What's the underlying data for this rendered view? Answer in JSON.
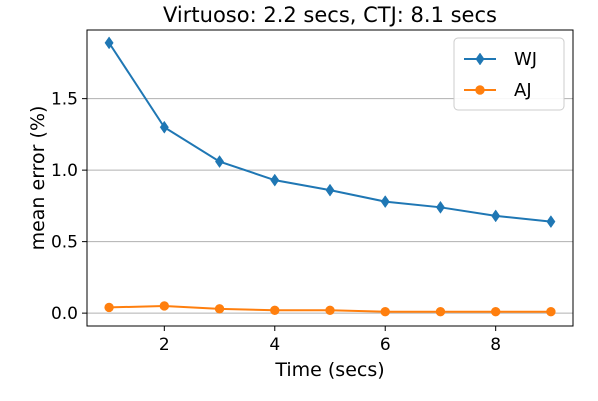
{
  "chart_data": {
    "type": "line",
    "title": "Virtuoso: 2.2 secs, CTJ: 8.1 secs",
    "xlabel": "Time (secs)",
    "ylabel": "mean error (%)",
    "xlim": [
      0.6,
      9.4
    ],
    "ylim": [
      -0.09,
      1.98
    ],
    "xticks": [
      2,
      4,
      6,
      8
    ],
    "xtick_labels": [
      "2",
      "4",
      "6",
      "8"
    ],
    "yticks": [
      0.0,
      0.5,
      1.0,
      1.5
    ],
    "ytick_labels": [
      "0.0",
      "0.5",
      "1.0",
      "1.5"
    ],
    "grid": "y",
    "legend_position": "upper right",
    "x": [
      1,
      2,
      3,
      4,
      5,
      6,
      7,
      8,
      9
    ],
    "series": [
      {
        "name": "WJ",
        "color": "#1f77b4",
        "marker": "thin-diamond",
        "values": [
          1.89,
          1.3,
          1.06,
          0.93,
          0.86,
          0.78,
          0.74,
          0.68,
          0.64
        ]
      },
      {
        "name": "AJ",
        "color": "#ff7f0e",
        "marker": "circle",
        "values": [
          0.04,
          0.05,
          0.03,
          0.02,
          0.02,
          0.01,
          0.01,
          0.01,
          0.01
        ]
      }
    ]
  }
}
